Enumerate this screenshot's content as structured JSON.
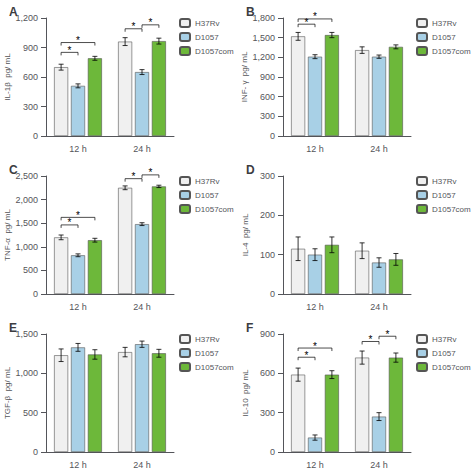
{
  "chart_data": [
    {
      "type": "bar",
      "title": "A",
      "ylabel": "IL-1β  pg/ mL",
      "categories": [
        "12 h",
        "24 h"
      ],
      "series": [
        {
          "name": "H37Rv",
          "color": "#f0f0f0",
          "values": [
            700,
            960
          ],
          "errors": [
            30,
            40
          ]
        },
        {
          "name": "D1057",
          "color": "#a8d0e6",
          "values": [
            510,
            650
          ],
          "errors": [
            20,
            25
          ]
        },
        {
          "name": "D1057com",
          "color": "#6db83a",
          "values": [
            790,
            965
          ],
          "errors": [
            20,
            30
          ]
        }
      ],
      "annotations": [
        {
          "text": "*",
          "category": "12 h",
          "from": "H37Rv",
          "to": "D1057",
          "y": 820
        },
        {
          "text": "*",
          "category": "12 h",
          "from": "H37Rv",
          "to": "D1057com",
          "y": 920
        },
        {
          "text": "*",
          "category": "24 h",
          "from": "H37Rv",
          "to": "D1057",
          "y": 1060
        },
        {
          "text": "*",
          "category": "24 h",
          "from": "D1057",
          "to": "D1057com",
          "y": 1100
        }
      ],
      "ylim": [
        0,
        1200
      ],
      "yticks": [
        0,
        300,
        600,
        900,
        1200
      ],
      "grid": false,
      "legend": "upper right"
    },
    {
      "type": "bar",
      "title": "B",
      "ylabel": "INF- γ  pg/ mL",
      "categories": [
        "12 h",
        "24 h"
      ],
      "series": [
        {
          "name": "H37Rv",
          "color": "#f0f0f0",
          "values": [
            1520,
            1310
          ],
          "errors": [
            60,
            50
          ]
        },
        {
          "name": "D1057",
          "color": "#a8d0e6",
          "values": [
            1210,
            1210
          ],
          "errors": [
            30,
            25
          ]
        },
        {
          "name": "D1057com",
          "color": "#6db83a",
          "values": [
            1540,
            1360
          ],
          "errors": [
            40,
            30
          ]
        }
      ],
      "annotations": [
        {
          "text": "*",
          "category": "12 h",
          "from": "H37Rv",
          "to": "D1057",
          "y": 1660
        },
        {
          "text": "*",
          "category": "12 h",
          "from": "H37Rv",
          "to": "D1057com",
          "y": 1740
        }
      ],
      "ylim": [
        0,
        1800
      ],
      "yticks": [
        0,
        300,
        600,
        900,
        1200,
        1500,
        1800
      ],
      "grid": false,
      "legend": "upper right"
    },
    {
      "type": "bar",
      "title": "C",
      "ylabel": "TNF-α  pg/ mL",
      "categories": [
        "12 h",
        "24 h"
      ],
      "series": [
        {
          "name": "H37Rv",
          "color": "#f0f0f0",
          "values": [
            1200,
            2250
          ],
          "errors": [
            50,
            40
          ]
        },
        {
          "name": "D1057",
          "color": "#a8d0e6",
          "values": [
            820,
            1480
          ],
          "errors": [
            30,
            30
          ]
        },
        {
          "name": "D1057com",
          "color": "#6db83a",
          "values": [
            1140,
            2280
          ],
          "errors": [
            40,
            25
          ]
        }
      ],
      "annotations": [
        {
          "text": "*",
          "category": "12 h",
          "from": "H37Rv",
          "to": "D1057",
          "y": 1400
        },
        {
          "text": "*",
          "category": "12 h",
          "from": "H37Rv",
          "to": "D1057com",
          "y": 1560
        },
        {
          "text": "*",
          "category": "24 h",
          "from": "H37Rv",
          "to": "D1057",
          "y": 2380
        },
        {
          "text": "*",
          "category": "24 h",
          "from": "D1057",
          "to": "D1057com",
          "y": 2460
        }
      ],
      "ylim": [
        0,
        2500
      ],
      "yticks": [
        0,
        500,
        1000,
        1500,
        2000,
        2500
      ],
      "grid": false,
      "legend": "upper right"
    },
    {
      "type": "bar",
      "title": "D",
      "ylabel": "IL-4  pg/ mL",
      "categories": [
        "12 h",
        "24 h"
      ],
      "series": [
        {
          "name": "H37Rv",
          "color": "#f0f0f0",
          "values": [
            115,
            110
          ],
          "errors": [
            30,
            20
          ]
        },
        {
          "name": "D1057",
          "color": "#a8d0e6",
          "values": [
            100,
            80
          ],
          "errors": [
            15,
            12
          ]
        },
        {
          "name": "D1057com",
          "color": "#6db83a",
          "values": [
            125,
            88
          ],
          "errors": [
            20,
            15
          ]
        }
      ],
      "annotations": [],
      "ylim": [
        0,
        300
      ],
      "yticks": [
        0,
        100,
        200,
        300
      ],
      "grid": false,
      "legend": "upper right"
    },
    {
      "type": "bar",
      "title": "E",
      "ylabel": "TGF-β  pg/ mL",
      "categories": [
        "12 h",
        "24 h"
      ],
      "series": [
        {
          "name": "H37Rv",
          "color": "#f0f0f0",
          "values": [
            1230,
            1270
          ],
          "errors": [
            80,
            60
          ]
        },
        {
          "name": "D1057",
          "color": "#a8d0e6",
          "values": [
            1330,
            1370
          ],
          "errors": [
            50,
            40
          ]
        },
        {
          "name": "D1057com",
          "color": "#6db83a",
          "values": [
            1240,
            1255
          ],
          "errors": [
            60,
            50
          ]
        }
      ],
      "annotations": [],
      "ylim": [
        0,
        1500
      ],
      "yticks": [
        0,
        500,
        1000,
        1500
      ],
      "grid": false,
      "legend": "upper right"
    },
    {
      "type": "bar",
      "title": "F",
      "ylabel": "IL-10  pg/ mL",
      "categories": [
        "12 h",
        "24 h"
      ],
      "series": [
        {
          "name": "H37Rv",
          "color": "#f0f0f0",
          "values": [
            590,
            720
          ],
          "errors": [
            50,
            50
          ]
        },
        {
          "name": "D1057",
          "color": "#a8d0e6",
          "values": [
            110,
            270
          ],
          "errors": [
            20,
            30
          ]
        },
        {
          "name": "D1057com",
          "color": "#6db83a",
          "values": [
            590,
            720
          ],
          "errors": [
            30,
            35
          ]
        }
      ],
      "annotations": [
        {
          "text": "*",
          "category": "12 h",
          "from": "H37Rv",
          "to": "D1057",
          "y": 700
        },
        {
          "text": "*",
          "category": "12 h",
          "from": "H37Rv",
          "to": "D1057com",
          "y": 770
        },
        {
          "text": "*",
          "category": "24 h",
          "from": "H37Rv",
          "to": "D1057",
          "y": 820
        },
        {
          "text": "*",
          "category": "24 h",
          "from": "D1057",
          "to": "D1057com",
          "y": 860
        }
      ],
      "ylim": [
        0,
        900
      ],
      "yticks": [
        0,
        300,
        600,
        900
      ],
      "grid": false,
      "legend": "upper right"
    }
  ]
}
